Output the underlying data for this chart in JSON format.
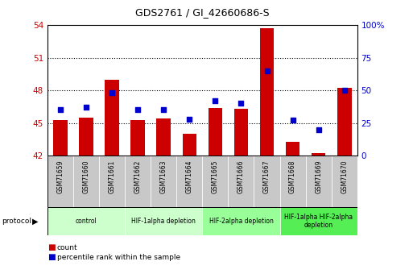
{
  "title": "GDS2761 / GI_42660686-S",
  "samples": [
    "GSM71659",
    "GSM71660",
    "GSM71661",
    "GSM71662",
    "GSM71663",
    "GSM71664",
    "GSM71665",
    "GSM71666",
    "GSM71667",
    "GSM71668",
    "GSM71669",
    "GSM71670"
  ],
  "counts": [
    45.3,
    45.5,
    49.0,
    45.3,
    45.4,
    44.0,
    46.4,
    46.3,
    53.7,
    43.3,
    42.2,
    48.2
  ],
  "percentile_ranks": [
    35,
    37,
    48,
    35,
    35,
    28,
    42,
    40,
    65,
    27,
    20,
    50
  ],
  "ylim_left": [
    42,
    54
  ],
  "ylim_right": [
    0,
    100
  ],
  "yticks_left": [
    42,
    45,
    48,
    51,
    54
  ],
  "yticks_right": [
    0,
    25,
    50,
    75,
    100
  ],
  "ytick_labels_right": [
    "0",
    "25",
    "50",
    "75",
    "100%"
  ],
  "bar_color": "#cc0000",
  "dot_color": "#0000cc",
  "bar_bottom": 42,
  "protocol_groups": [
    {
      "label": "control",
      "start": 0,
      "end": 2,
      "color": "#ccffcc"
    },
    {
      "label": "HIF-1alpha depletion",
      "start": 3,
      "end": 5,
      "color": "#ccffcc"
    },
    {
      "label": "HIF-2alpha depletion",
      "start": 6,
      "end": 8,
      "color": "#99ff99"
    },
    {
      "label": "HIF-1alpha HIF-2alpha\ndepletion",
      "start": 9,
      "end": 11,
      "color": "#55ee55"
    }
  ],
  "plot_bg_color": "#ffffff",
  "sample_box_color": "#c8c8c8",
  "ylabel_left_color": "#cc0000",
  "ylabel_right_color": "#0000cc",
  "legend_items": [
    {
      "label": "count",
      "color": "#cc0000"
    },
    {
      "label": "percentile rank within the sample",
      "color": "#0000cc"
    }
  ],
  "grid_yticks": [
    45,
    48,
    51
  ]
}
